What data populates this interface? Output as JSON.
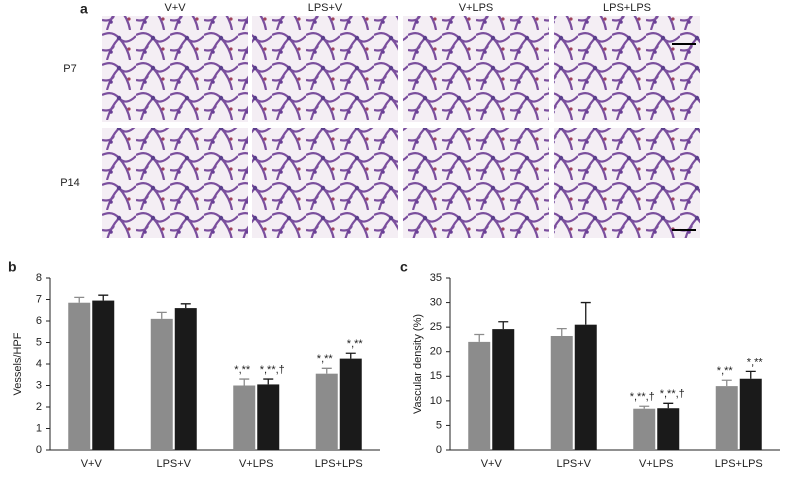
{
  "panel_a": {
    "panel": "a",
    "columns": [
      "V+V",
      "LPS+V",
      "V+LPS",
      "LPS+LPS"
    ],
    "rows": [
      "P7",
      "P14"
    ]
  },
  "chart_data": [
    {
      "type": "bar",
      "panel": "b",
      "ylabel": "Vessels/HPF",
      "categories": [
        "V+V",
        "LPS+V",
        "V+LPS",
        "LPS+LPS"
      ],
      "series": [
        {
          "color": "#8c8c8c",
          "values": [
            6.85,
            6.1,
            3.0,
            3.55
          ],
          "errors": [
            0.25,
            0.3,
            0.3,
            0.25
          ],
          "annotations": [
            null,
            null,
            "*,**",
            "*,**"
          ]
        },
        {
          "color": "#1a1a1a",
          "values": [
            6.95,
            6.6,
            3.05,
            4.25
          ],
          "errors": [
            0.25,
            0.2,
            0.25,
            0.25
          ],
          "annotations": [
            null,
            null,
            "*,**,†",
            "*,**"
          ]
        }
      ],
      "ylim": [
        0,
        8
      ],
      "yticks": [
        0,
        1,
        2,
        3,
        4,
        5,
        6,
        7,
        8
      ]
    },
    {
      "type": "bar",
      "panel": "c",
      "ylabel": "Vascular density (%)",
      "categories": [
        "V+V",
        "LPS+V",
        "V+LPS",
        "LPS+LPS"
      ],
      "series": [
        {
          "color": "#8c8c8c",
          "values": [
            22,
            23.2,
            8.4,
            13
          ],
          "errors": [
            1.5,
            1.5,
            0.5,
            1.2
          ],
          "annotations": [
            null,
            null,
            "*,**,†",
            "*,**"
          ]
        },
        {
          "color": "#1a1a1a",
          "values": [
            24.6,
            25.5,
            8.5,
            14.5
          ],
          "errors": [
            1.5,
            4.5,
            1,
            1.5
          ],
          "annotations": [
            null,
            null,
            "*,**,†",
            "*,**"
          ]
        }
      ],
      "ylim": [
        0,
        35
      ],
      "yticks": [
        0,
        5,
        10,
        15,
        20,
        25,
        30,
        35
      ]
    }
  ]
}
